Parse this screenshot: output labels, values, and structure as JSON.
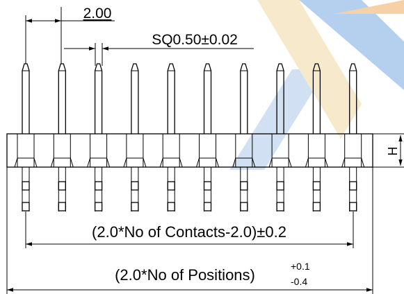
{
  "dimensions": {
    "pitch": "2.00",
    "pin_size": "SQ0.50±0.02",
    "contacts_length": "(2.0*No of Contacts-2.0)±0.2",
    "positions_length": {
      "text": "(2.0*No of Positions)",
      "upper_tolerance": "+0.1",
      "lower_tolerance": "-0.4"
    },
    "height": "H"
  }
}
